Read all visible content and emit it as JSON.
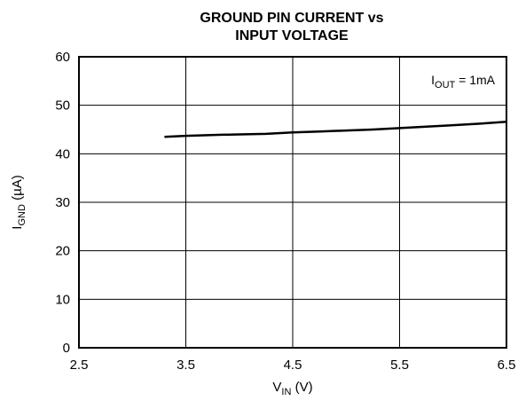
{
  "chart_data": {
    "type": "line",
    "title_line1": "GROUND PIN CURRENT vs",
    "title_line2": "INPUT VOLTAGE",
    "xlabel": {
      "main": "V",
      "sub": "IN",
      "unit": " (V)"
    },
    "ylabel": {
      "main": "I",
      "sub": "GND",
      "unit": " (µA)"
    },
    "xlim": [
      2.5,
      6.5
    ],
    "ylim": [
      0,
      60
    ],
    "xticks": [
      "2.5",
      "3.5",
      "4.5",
      "5.5",
      "6.5"
    ],
    "yticks": [
      "0",
      "10",
      "20",
      "30",
      "40",
      "50",
      "60"
    ],
    "grid": true,
    "annotation": {
      "main": "I",
      "sub": "OUT",
      "rest": " = 1mA"
    },
    "series": [
      {
        "x": [
          3.3,
          3.5,
          3.8,
          4.0,
          4.25,
          4.5,
          4.75,
          5.0,
          5.25,
          5.5,
          5.75,
          6.0,
          6.25,
          6.5
        ],
        "y": [
          43.5,
          43.7,
          43.9,
          44.0,
          44.1,
          44.4,
          44.6,
          44.8,
          45.0,
          45.3,
          45.6,
          45.9,
          46.2,
          46.6
        ]
      }
    ]
  }
}
